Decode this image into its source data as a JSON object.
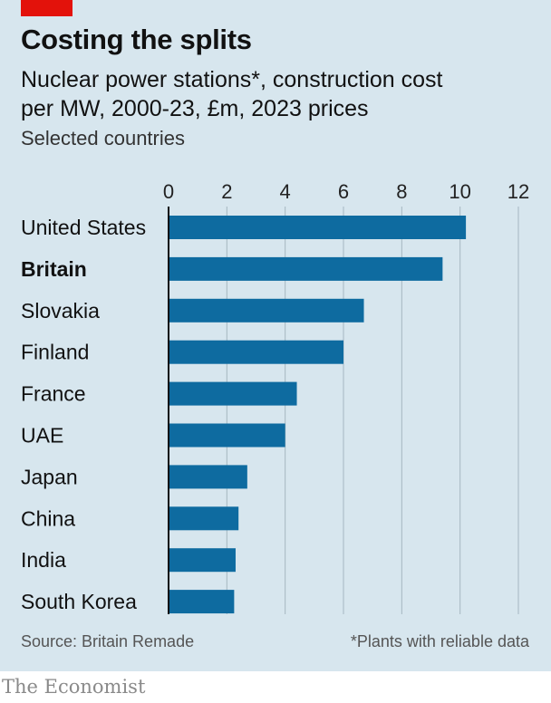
{
  "header": {
    "title": "Costing the splits",
    "subtitle": "Nuclear power stations*, construction cost per MW, 2000-23, £m, 2023 prices",
    "note": "Selected countries"
  },
  "footer": {
    "source": "Source: Britain Remade",
    "footnote": "*Plants with reliable data",
    "brand": "The Economist"
  },
  "colors": {
    "bar": "#0e6ba0",
    "accent": "#e3120b",
    "background": "#d7e6ee"
  },
  "chart_data": {
    "type": "bar",
    "orientation": "horizontal",
    "categories": [
      "United States",
      "Britain",
      "Slovakia",
      "Finland",
      "France",
      "UAE",
      "Japan",
      "China",
      "India",
      "South Korea"
    ],
    "highlighted": [
      "Britain"
    ],
    "values": [
      10.2,
      9.4,
      6.7,
      6.0,
      4.4,
      4.0,
      2.7,
      2.4,
      2.3,
      2.25
    ],
    "xlim": [
      0,
      12
    ],
    "xticks": [
      0,
      2,
      4,
      6,
      8,
      10,
      12
    ],
    "grid": true,
    "axis_position": "top"
  }
}
